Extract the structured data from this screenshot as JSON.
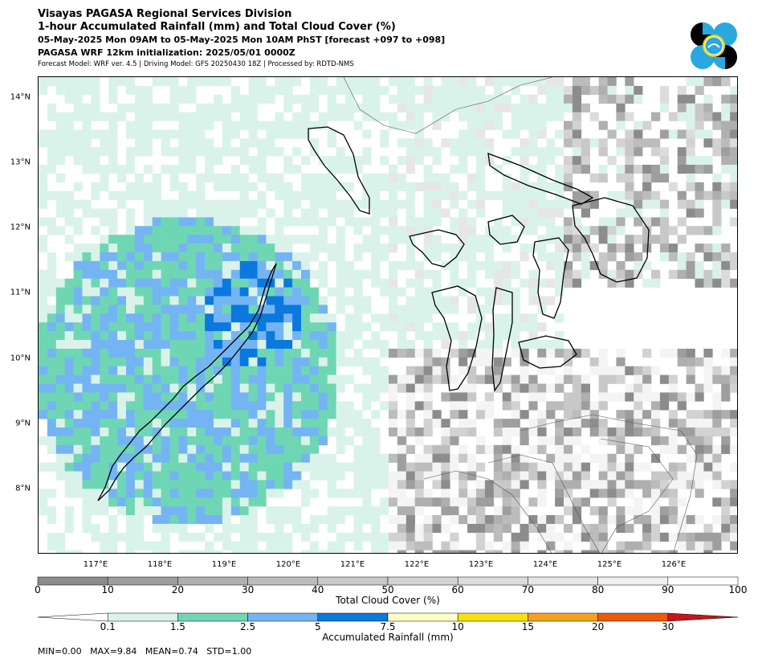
{
  "header": {
    "line1": "Visayas PAGASA Regional Services Division",
    "line2": "1-hour Accumulated Rainfall (mm) and Total Cloud Cover (%)",
    "line3": "05-May-2025 Mon 09AM to 05-May-2025 Mon 10AM PhST [forecast +097 to +098]",
    "line4": "PAGASA WRF 12km initialization: 2025/05/01 0000Z",
    "line5": "Forecast Model: WRF ver. 4.5 | Driving Model: GFS 20250430 18Z | Processed by: RDTD-NMS"
  },
  "map": {
    "lat_labels": [
      "14°N",
      "13°N",
      "12°N",
      "11°N",
      "10°N",
      "9°N",
      "8°N"
    ],
    "lon_labels": [
      "117°E",
      "118°E",
      "119°E",
      "120°E",
      "121°E",
      "122°E",
      "123°E",
      "124°E",
      "125°E",
      "126°E"
    ],
    "extent": {
      "lon_min": 116.2,
      "lon_max": 127.1,
      "lat_min": 7.0,
      "lat_max": 14.3
    }
  },
  "cloud_colorbar": {
    "label": "Total Cloud Cover (%)",
    "ticks": [
      "0",
      "10",
      "20",
      "30",
      "40",
      "50",
      "60",
      "70",
      "80",
      "90",
      "100"
    ],
    "colors": [
      "#8c8c8c",
      "#9e9e9e",
      "#afafaf",
      "#bcbcbc",
      "#c8c8c8",
      "#d2d2d2",
      "#dcdcdc",
      "#e6e6e6",
      "#f0f0f0",
      "#ffffff"
    ]
  },
  "rain_colorbar": {
    "label": "Accumulated Rainfall (mm)",
    "ticks": [
      "0.1",
      "1.5",
      "2.5",
      "5",
      "7.5",
      "10",
      "15",
      "20",
      "30"
    ],
    "colors": [
      "#daf3ea",
      "#6fd6b4",
      "#74b4f3",
      "#0a78dc",
      "#fffdc8",
      "#f6e10e",
      "#f6a01e",
      "#ec5a0a",
      "#c8141e"
    ]
  },
  "stats": "MIN=0.00   MAX=9.84   MEAN=0.74   STD=1.00"
}
